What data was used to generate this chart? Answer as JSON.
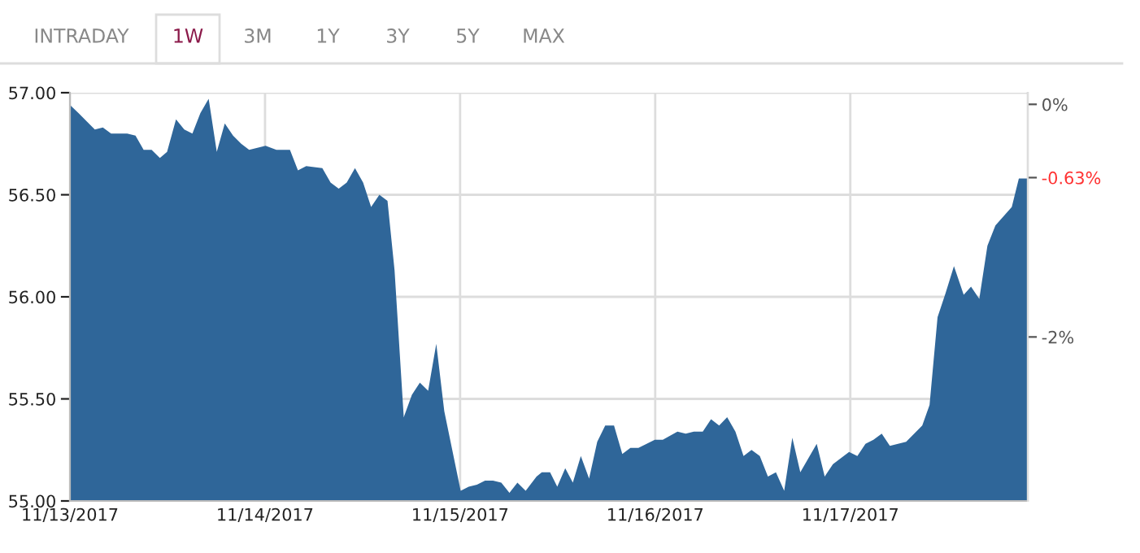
{
  "chart_data": {
    "type": "area",
    "annotations": [
      "INTRADAY",
      "1W",
      "3M",
      "1Y",
      "3Y",
      "5Y",
      "MAX"
    ],
    "x": [
      "2017-11-13T00:00",
      "2017-11-13T01:03",
      "2017-11-13T02:04",
      "2017-11-13T03:04",
      "2017-11-13T04:03",
      "2017-11-13T05:04",
      "2017-11-13T07:03",
      "2017-11-13T08:04",
      "2017-11-13T09:04",
      "2017-11-13T10:03",
      "2017-11-13T11:04",
      "2017-11-13T11:57",
      "2017-11-13T13:03",
      "2017-11-13T14:04",
      "2017-11-13T15:04",
      "2017-11-13T16:03",
      "2017-11-13T17:04",
      "2017-11-13T18:04",
      "2017-11-13T19:03",
      "2017-11-13T20:04",
      "2017-11-13T21:04",
      "2017-11-13T22:03",
      "2017-11-14T00:04",
      "2017-11-14T01:24",
      "2017-11-14T03:04",
      "2017-11-14T04:03",
      "2017-11-14T05:04",
      "2017-11-14T07:03",
      "2017-11-14T08:04",
      "2017-11-14T09:04",
      "2017-11-14T10:03",
      "2017-11-14T11:04",
      "2017-11-14T12:04",
      "2017-11-14T13:03",
      "2017-11-14T14:04",
      "2017-11-14T15:04",
      "2017-11-14T15:56",
      "2017-11-14T17:04",
      "2017-11-14T18:04",
      "2017-11-14T19:03",
      "2017-11-14T20:04",
      "2017-11-14T21:04",
      "2017-11-14T22:03",
      "2017-11-15T00:04",
      "2017-11-15T01:03",
      "2017-11-15T02:04",
      "2017-11-15T03:04",
      "2017-11-15T04:03",
      "2017-11-15T05:04",
      "2017-11-15T06:04",
      "2017-11-15T07:03",
      "2017-11-15T08:04",
      "2017-11-15T09:24",
      "2017-11-15T10:03",
      "2017-11-15T11:04",
      "2017-11-15T11:57",
      "2017-11-15T12:56",
      "2017-11-15T13:52",
      "2017-11-15T14:51",
      "2017-11-15T15:52",
      "2017-11-15T16:52",
      "2017-11-15T17:51",
      "2017-11-15T18:56",
      "2017-11-15T19:57",
      "2017-11-15T20:57",
      "2017-11-15T21:56",
      "2017-11-15T23:57",
      "2017-11-16T00:56",
      "2017-11-16T02:44",
      "2017-11-16T03:45",
      "2017-11-16T04:45",
      "2017-11-16T05:51",
      "2017-11-16T06:52",
      "2017-11-16T07:52",
      "2017-11-16T08:51",
      "2017-11-16T09:52",
      "2017-11-16T10:52",
      "2017-11-16T11:51",
      "2017-11-16T12:52",
      "2017-11-16T13:52",
      "2017-11-16T14:51",
      "2017-11-16T15:52",
      "2017-11-16T16:52",
      "2017-11-16T17:51",
      "2017-11-16T19:52",
      "2017-11-16T20:51",
      "2017-11-16T21:52",
      "2017-11-16T23:51",
      "2017-11-17T00:52",
      "2017-11-17T01:52",
      "2017-11-17T02:51",
      "2017-11-17T03:52",
      "2017-11-17T04:52",
      "2017-11-17T06:52",
      "2017-11-17T08:51",
      "2017-11-17T09:45",
      "2017-11-17T10:44",
      "2017-11-17T11:44",
      "2017-11-17T12:45",
      "2017-11-17T13:57",
      "2017-11-17T14:51",
      "2017-11-17T15:52",
      "2017-11-17T16:52",
      "2017-11-17T17:51",
      "2017-11-17T19:52",
      "2017-11-17T20:44",
      "2017-11-17T21:45"
    ],
    "series": [
      {
        "color": "#2f6699",
        "values": [
          56.94,
          56.9,
          56.86,
          56.82,
          56.83,
          56.8,
          56.8,
          56.79,
          56.72,
          56.72,
          56.68,
          56.71,
          56.87,
          56.82,
          56.8,
          56.9,
          56.97,
          56.71,
          56.85,
          56.79,
          56.75,
          56.72,
          56.74,
          56.72,
          56.72,
          56.62,
          56.64,
          56.63,
          56.56,
          56.53,
          56.56,
          56.63,
          56.56,
          56.44,
          56.5,
          56.47,
          56.13,
          55.41,
          55.52,
          55.58,
          55.54,
          55.77,
          55.44,
          55.05,
          55.07,
          55.08,
          55.1,
          55.1,
          55.09,
          55.04,
          55.09,
          55.05,
          55.12,
          55.14,
          55.14,
          55.07,
          55.16,
          55.09,
          55.22,
          55.11,
          55.29,
          55.37,
          55.37,
          55.23,
          55.26,
          55.26,
          55.3,
          55.3,
          55.34,
          55.33,
          55.34,
          55.34,
          55.4,
          55.37,
          55.41,
          55.34,
          55.22,
          55.25,
          55.22,
          55.12,
          55.14,
          55.05,
          55.31,
          55.14,
          55.28,
          55.12,
          55.18,
          55.24,
          55.22,
          55.28,
          55.3,
          55.33,
          55.27,
          55.29,
          55.37,
          55.47,
          55.9,
          56.02,
          56.15,
          56.01,
          56.05,
          55.99,
          56.25,
          56.35,
          56.44,
          56.58,
          56.58
        ]
      }
    ],
    "xlim": [
      "2017-11-13T00:00",
      "2017-11-17T21:50"
    ],
    "xticks": [
      {
        "value": "2017-11-13",
        "label": "11/13/2017"
      },
      {
        "value": "2017-11-14",
        "label": "11/14/2017"
      },
      {
        "value": "2017-11-15",
        "label": "11/15/2017"
      },
      {
        "value": "2017-11-16",
        "label": "11/16/2017"
      },
      {
        "value": "2017-11-17",
        "label": "11/17/2017"
      }
    ],
    "ylim": [
      55,
      57
    ],
    "yticks": [
      {
        "value": 55,
        "label": "55.00"
      },
      {
        "value": 55.5,
        "label": "55.50"
      },
      {
        "value": 56,
        "label": "56.00"
      },
      {
        "value": 56.5,
        "label": "56.50"
      },
      {
        "value": 57,
        "label": "57.00"
      }
    ],
    "y2lim": [
      -3.41,
      0.1
    ],
    "y2ticks": [
      {
        "value": 0,
        "label": "0%"
      },
      {
        "value": -0.63,
        "label": "-0.63%"
      },
      {
        "value": -2,
        "label": "-2%"
      }
    ],
    "grid": true,
    "legend": false
  }
}
